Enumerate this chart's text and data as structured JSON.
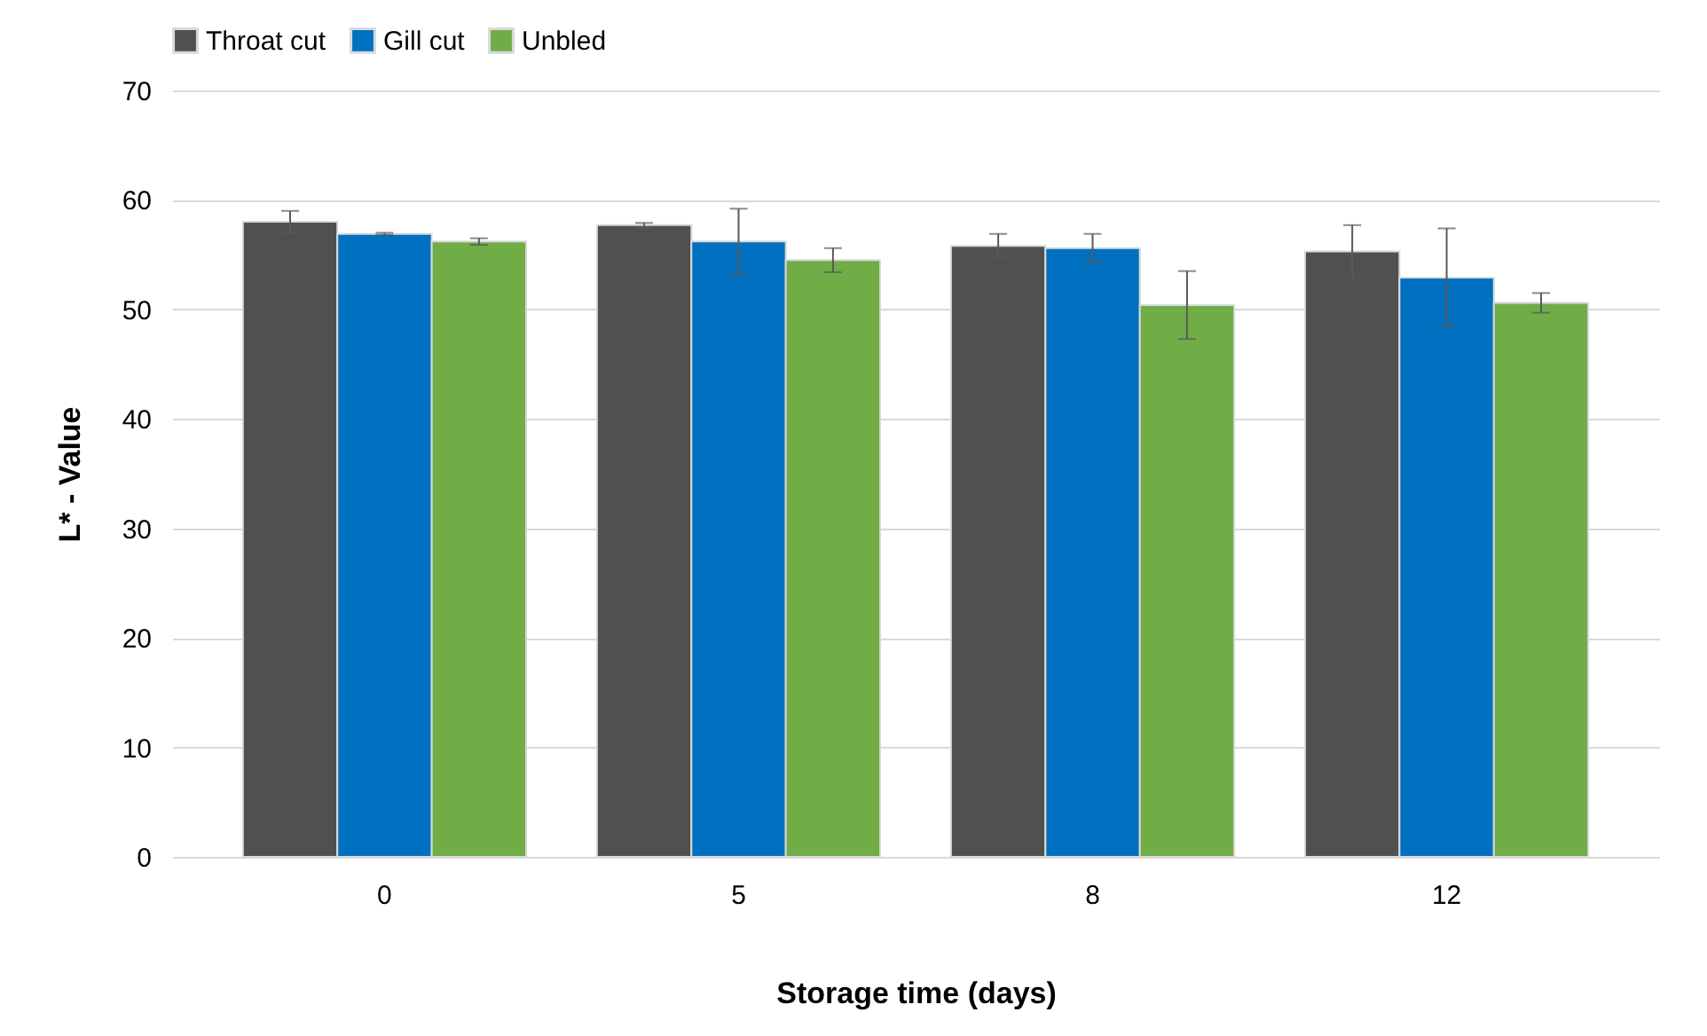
{
  "chart_data": {
    "type": "bar",
    "xlabel": "Storage time (days)",
    "ylabel": "L* - Value",
    "categories": [
      "0",
      "5",
      "8",
      "12"
    ],
    "series": [
      {
        "name": "Throat cut",
        "color": "#505050",
        "values": [
          58.0,
          57.7,
          55.8,
          55.3
        ],
        "errors": [
          1.0,
          0.2,
          1.1,
          2.4
        ]
      },
      {
        "name": "Gill cut",
        "color": "#0070c0",
        "values": [
          56.9,
          56.2,
          55.6,
          52.9
        ],
        "errors": [
          0.1,
          3.0,
          1.3,
          4.5
        ]
      },
      {
        "name": "Unbled",
        "color": "#70ad47",
        "values": [
          56.2,
          54.5,
          50.4,
          50.6
        ],
        "errors": [
          0.3,
          1.1,
          3.1,
          0.9
        ]
      }
    ],
    "ylim": [
      0,
      70
    ],
    "yticks": [
      0,
      10,
      20,
      30,
      40,
      50,
      60,
      70
    ],
    "grid": "y",
    "legend": "top"
  }
}
